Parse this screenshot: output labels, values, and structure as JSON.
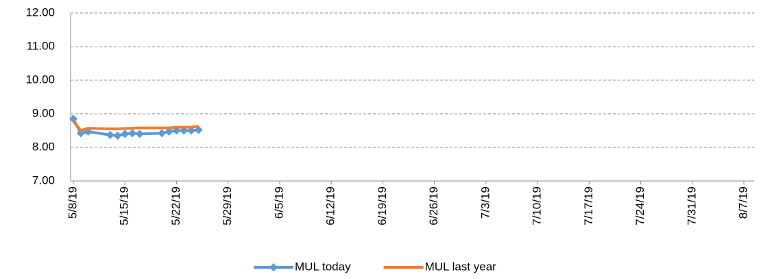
{
  "chart_data": {
    "type": "line",
    "x": [
      "5/8/19",
      "5/9/19",
      "5/10/19",
      "5/13/19",
      "5/14/19",
      "5/15/19",
      "5/16/19",
      "5/17/19",
      "5/20/19",
      "5/21/19",
      "5/22/19",
      "5/23/19",
      "5/24/19",
      "5/25/19"
    ],
    "series": [
      {
        "name": "MUL today",
        "color": "#5b9bd5",
        "marker": "diamond",
        "values": [
          8.85,
          8.42,
          8.47,
          8.37,
          8.35,
          8.4,
          8.42,
          8.4,
          8.42,
          8.47,
          8.5,
          8.5,
          8.5,
          8.52
        ]
      },
      {
        "name": "MUL last year",
        "color": "#ed7d31",
        "values": [
          8.78,
          8.5,
          8.57,
          8.55,
          8.55,
          8.56,
          8.57,
          8.58,
          8.58,
          8.58,
          8.6,
          8.6,
          8.6,
          8.63
        ]
      }
    ],
    "xlim": [
      "5/8/19",
      "8/7/19"
    ],
    "xticks": [
      "5/8/19",
      "5/15/19",
      "5/22/19",
      "5/29/19",
      "6/5/19",
      "6/12/19",
      "6/19/19",
      "6/26/19",
      "7/3/19",
      "7/10/19",
      "7/17/19",
      "7/24/19",
      "7/31/19",
      "8/7/19"
    ],
    "ylim": [
      7,
      12
    ],
    "yticks": [
      {
        "value": 7,
        "label": "7.00"
      },
      {
        "value": 8,
        "label": "8.00"
      },
      {
        "value": 9,
        "label": "9.00"
      },
      {
        "value": 10,
        "label": "10.00"
      },
      {
        "value": 11,
        "label": "11.00"
      },
      {
        "value": 12,
        "label": "12.00"
      }
    ],
    "grid": true,
    "legend": "bottom"
  }
}
